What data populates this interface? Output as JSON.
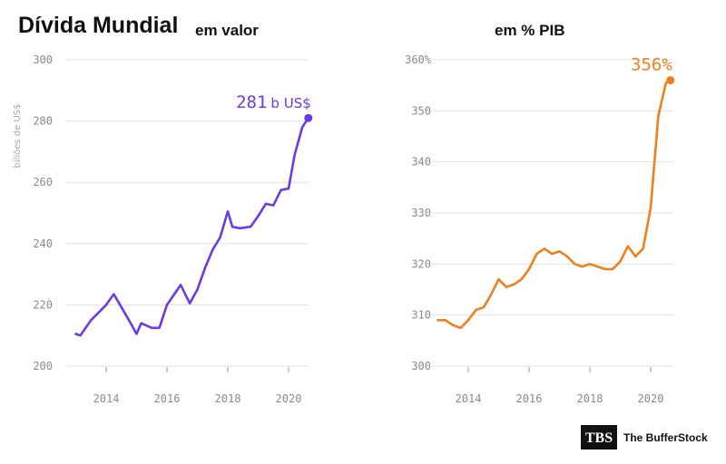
{
  "titles": {
    "main": "Dívida Mundial",
    "left_sub": "em valor",
    "right": "em % PIB"
  },
  "logo": {
    "mark": "TBS",
    "name": "The BufferStock"
  },
  "colors": {
    "left_series": "#6a3be4",
    "right_series": "#ee7f1b",
    "grid": "#e0e0e0",
    "tick": "#8a8a8a"
  },
  "chart_data": [
    {
      "type": "line",
      "title": "Dívida Mundial em valor",
      "ylabel": "biliões de US$",
      "xlabel": "",
      "ylim": [
        200,
        300
      ],
      "yticks": [
        200,
        220,
        240,
        260,
        280,
        300
      ],
      "ytick_labels": [
        "200",
        "220",
        "240",
        "260",
        "280",
        "300"
      ],
      "xlim": [
        2012.85,
        2020.9
      ],
      "xticks": [
        2014,
        2016,
        2018,
        2020
      ],
      "xtick_labels": [
        "2014",
        "2016",
        "2018",
        "2020"
      ],
      "grid": true,
      "end_label": {
        "value": "281",
        "unit": "b US$"
      },
      "series": [
        {
          "x": [
            2013.0,
            2013.15,
            2013.5,
            2013.75,
            2014.0,
            2014.25,
            2014.75,
            2015.0,
            2015.15,
            2015.5,
            2015.75,
            2016.0,
            2016.45,
            2016.75,
            2017.0,
            2017.25,
            2017.5,
            2017.75,
            2018.0,
            2018.15,
            2018.4,
            2018.75,
            2019.0,
            2019.25,
            2019.5,
            2019.75,
            2020.0,
            2020.2,
            2020.45,
            2020.65
          ],
          "y": [
            210.5,
            210,
            215,
            217.5,
            220,
            223.5,
            215,
            210.5,
            214,
            212.5,
            212.5,
            220,
            226.5,
            220.5,
            225,
            232,
            238,
            242,
            250.5,
            245.5,
            245,
            245.5,
            249,
            253,
            252.5,
            257.5,
            258,
            269,
            278,
            281
          ]
        }
      ]
    },
    {
      "type": "line",
      "title": "em % PIB",
      "ylabel": "",
      "xlabel": "",
      "ylim": [
        300,
        360
      ],
      "yticks": [
        300,
        310,
        320,
        330,
        340,
        350,
        360
      ],
      "ytick_labels": [
        "300",
        "310",
        "320",
        "330",
        "340",
        "350",
        "360%"
      ],
      "xlim": [
        2012.85,
        2020.9
      ],
      "xticks": [
        2014,
        2016,
        2018,
        2020
      ],
      "xtick_labels": [
        "2014",
        "2016",
        "2018",
        "2020"
      ],
      "grid": true,
      "end_label": {
        "value": "356%",
        "unit": ""
      },
      "series": [
        {
          "x": [
            2013.0,
            2013.25,
            2013.5,
            2013.75,
            2014.0,
            2014.25,
            2014.5,
            2014.75,
            2015.0,
            2015.25,
            2015.5,
            2015.75,
            2016.0,
            2016.25,
            2016.5,
            2016.75,
            2017.0,
            2017.25,
            2017.5,
            2017.75,
            2018.0,
            2018.25,
            2018.5,
            2018.75,
            2019.0,
            2019.25,
            2019.5,
            2019.75,
            2020.0,
            2020.25,
            2020.5,
            2020.65
          ],
          "y": [
            309,
            309,
            308,
            307.5,
            309,
            311,
            311.5,
            314,
            317,
            315.5,
            316,
            317,
            319,
            322,
            323,
            322,
            322.5,
            321.5,
            320,
            319.5,
            320,
            319.5,
            319,
            319,
            320.5,
            323.5,
            321.5,
            323,
            331,
            349,
            355.5,
            356
          ]
        }
      ]
    }
  ]
}
